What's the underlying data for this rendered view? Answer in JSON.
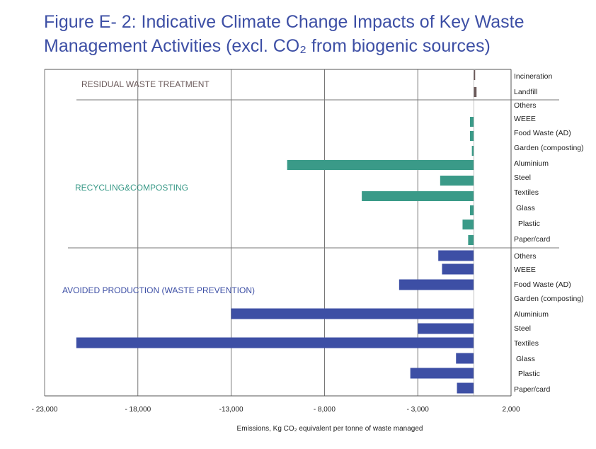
{
  "title_line1": "Figure E- 2: Indicative Climate Change Impacts of Key Waste",
  "title_line2": "Management Activities (excl. CO₂ from biogenic sources)",
  "chart_data": {
    "type": "bar",
    "orientation": "horizontal",
    "xlabel": "Emissions, Kg CO₂ equivalent per tonne of waste managed",
    "xlim": [
      -23000,
      2000
    ],
    "xticks": [
      -23000,
      -18000,
      -13000,
      -8000,
      -3000,
      2000
    ],
    "xtick_labels": [
      "- 23,000",
      "- 18,000",
      "-13,000",
      "- 8,000",
      "- 3,000",
      "2,000"
    ],
    "grid": "vertical",
    "colors": {
      "residual": "#6b5a5a",
      "recycling": "#3a9a88",
      "avoided": "#3d4fa5"
    },
    "groups": [
      {
        "name": "RESIDUAL WASTE TREATMENT",
        "color_key": "residual",
        "categories": [
          "Incineration",
          "Landfill"
        ],
        "values": [
          50,
          150
        ]
      },
      {
        "name": "RECYCLING&COMPOSTING",
        "color_key": "recycling",
        "categories": [
          "Others",
          "WEEE",
          "Food Waste (AD)",
          "Garden (composting)",
          "Aluminium",
          "Steel",
          "Textiles",
          "Glass",
          "Plastic",
          "Paper/card"
        ],
        "values": [
          0,
          -200,
          -200,
          -100,
          -10000,
          -1800,
          -6000,
          -200,
          -600,
          -300
        ]
      },
      {
        "name": "AVOIDED PRODUCTION (WASTE PREVENTION)",
        "color_key": "avoided",
        "categories": [
          "Others",
          "WEEE",
          "Food Waste (AD)",
          "Garden (composting)",
          "Aluminium",
          "Steel",
          "Textiles",
          "Glass",
          "Plastic",
          "Paper/card"
        ],
        "values": [
          -1900,
          -1700,
          -4000,
          0,
          -13000,
          -3000,
          -21300,
          -950,
          -3400,
          -900
        ]
      }
    ]
  }
}
